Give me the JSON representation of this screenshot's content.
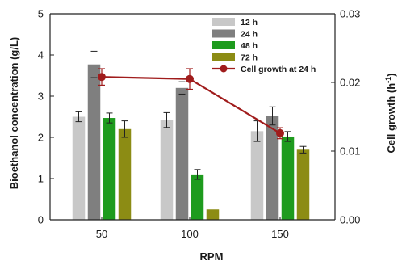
{
  "chart_data": {
    "type": "bar",
    "categories": [
      "50",
      "100",
      "150"
    ],
    "xlabel": "RPM",
    "ylabel": "Bioethanol concentration (g/L)",
    "ylim": [
      0,
      5
    ],
    "yticks": [
      "0",
      "1",
      "2",
      "3",
      "4",
      "5"
    ],
    "y2label_main": "Cell growth (h",
    "y2label_sup": "-1",
    "y2label_end": ")",
    "y2lim": [
      0,
      0.03
    ],
    "y2ticks": [
      "0.00",
      "0.01",
      "0.02",
      "0.03"
    ],
    "grid": false,
    "legend_position": "top-right",
    "series": [
      {
        "name": "12 h",
        "color": "#c8c8c8",
        "values": [
          2.5,
          2.42,
          2.15
        ],
        "errors": [
          0.12,
          0.18,
          0.25
        ]
      },
      {
        "name": "24 h",
        "color": "#7f7f7f",
        "values": [
          3.77,
          3.2,
          2.52
        ],
        "errors": [
          0.32,
          0.15,
          0.22
        ]
      },
      {
        "name": "48 h",
        "color": "#1e9b1e",
        "values": [
          2.47,
          1.1,
          2.02
        ],
        "errors": [
          0.12,
          0.12,
          0.12
        ]
      },
      {
        "name": "72 h",
        "color": "#8c8c14",
        "values": [
          2.2,
          0.25,
          1.7
        ],
        "errors": [
          0.2,
          0.0,
          0.08
        ]
      }
    ],
    "line_series": {
      "name": "Cell growth at 24 h",
      "color": "#a01c1c",
      "axis": "right",
      "values": [
        0.0208,
        0.0205,
        0.0126
      ],
      "errors": [
        0.0012,
        0.0015,
        0.0008
      ]
    }
  }
}
